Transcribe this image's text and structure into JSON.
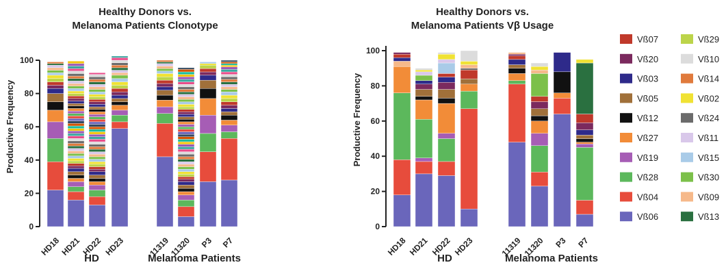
{
  "chart_data": [
    {
      "type": "bar",
      "stacked": true,
      "title_lines": [
        "Healthy Donors vs.",
        "Melanoma Patients Clonotype"
      ],
      "ylabel": "Productive Frequency",
      "ylim": [
        0,
        100
      ],
      "yticks": [
        0,
        20,
        40,
        60,
        80,
        100
      ],
      "categories": [
        "HD18",
        "HD21",
        "HD22",
        "HD23",
        "11319",
        "11320",
        "P3",
        "P7"
      ],
      "groups": [
        {
          "label": "HD",
          "categories": [
            "HD18",
            "HD21",
            "HD22",
            "HD23"
          ]
        },
        {
          "label": "Melanoma Patients",
          "categories": [
            "11319",
            "11320",
            "P3",
            "P7"
          ]
        }
      ],
      "bars": [
        {
          "segments": [
            22,
            17,
            14,
            10,
            7,
            5,
            5,
            3,
            2,
            2,
            2,
            2,
            1.5,
            1.5,
            1.5,
            1.5,
            1,
            1
          ]
        },
        {
          "segments": [
            16,
            5,
            3,
            3,
            2,
            2,
            2,
            2,
            1.5,
            1.5,
            1.5,
            1.5,
            1.5,
            1.5,
            1.5,
            1.5,
            1.5,
            1.5,
            1.5,
            1.5,
            1.5,
            1.5,
            1.5,
            1.5,
            1.5,
            1.5,
            1.5,
            1.5,
            1.5,
            1.5,
            1.5,
            1.5,
            1.5,
            1.5,
            1.5,
            1.5,
            1.5,
            1.5,
            1.5,
            1.5,
            1.5,
            1.5,
            1.5,
            1.5,
            1.5,
            1.5,
            1.5,
            1.5,
            1.5,
            1.5,
            1.5
          ]
        },
        {
          "segments": [
            13,
            5,
            4,
            3,
            2,
            2,
            2,
            2,
            1.5,
            1.5,
            1.5,
            1.5,
            1.5,
            1.5,
            1.5,
            1.5,
            1.5,
            1.5,
            1.5,
            1.5,
            1.5,
            1.5,
            1.5,
            1.5,
            1.5,
            1.5,
            1.5,
            1.5,
            1.5,
            1.5,
            1.5,
            1.5,
            1.5,
            1.5,
            1.5,
            1.5,
            1.5,
            1.5,
            1.5,
            1.5,
            1.5,
            1.5,
            1.5,
            1.5,
            1.5,
            1.5,
            1.5,
            1
          ]
        },
        {
          "segments": [
            59,
            4,
            4,
            3,
            3,
            2,
            2,
            2,
            2,
            2,
            2,
            2,
            2,
            2,
            1.5,
            1.5,
            1.5,
            1.5,
            1.5,
            1.5,
            1.5,
            1
          ]
        },
        {
          "segments": [
            42,
            20,
            6,
            4,
            4,
            3,
            3,
            2,
            2,
            2,
            2,
            2,
            1.5,
            1.5,
            1.5,
            1.5,
            1,
            1
          ]
        },
        {
          "segments": [
            6,
            6,
            4,
            3,
            2,
            2,
            2,
            2,
            1.5,
            1.5,
            1.5,
            1.5,
            1.5,
            1.5,
            1.5,
            1.5,
            1.5,
            1.5,
            1.5,
            1.5,
            1.5,
            1.5,
            1.5,
            1.5,
            1.5,
            1.5,
            1.5,
            1.5,
            1.5,
            1.5,
            1.5,
            1.5,
            1.5,
            1.5,
            1.5,
            1.5,
            1.5,
            1.5,
            1.5,
            1.5,
            1.5,
            1.5,
            1.5,
            1.5,
            1.5,
            1.5,
            1.5,
            1.5,
            1.5,
            1.5,
            1.5,
            1.5,
            1.5,
            1
          ]
        },
        {
          "segments": [
            27,
            18,
            11,
            11,
            10,
            6,
            5,
            3,
            2,
            2,
            2,
            1,
            1
          ]
        },
        {
          "segments": [
            28,
            25,
            4,
            4,
            3,
            3,
            2,
            2,
            2,
            2,
            2,
            2,
            2,
            1.5,
            1.5,
            1.5,
            1.5,
            1.5,
            1.5,
            1.5,
            1.5,
            1.5,
            1.5,
            1,
            1,
            1,
            1
          ]
        }
      ]
    },
    {
      "type": "bar",
      "stacked": true,
      "title_lines": [
        "Healthy Donors vs.",
        "Melanoma Patients Vβ Usage"
      ],
      "ylabel": "Productive Frequency",
      "ylim": [
        0,
        100
      ],
      "yticks": [
        0,
        20,
        40,
        60,
        80,
        100
      ],
      "categories": [
        "HD18",
        "HD21",
        "HD22",
        "HD23",
        "11319",
        "11320",
        "P3",
        "P7"
      ],
      "groups": [
        {
          "label": "HD",
          "categories": [
            "HD18",
            "HD21",
            "HD22",
            "HD23"
          ]
        },
        {
          "label": "Melanoma Patients",
          "categories": [
            "11319",
            "11320",
            "P3",
            "P7"
          ]
        }
      ],
      "legend": [
        {
          "name": "Vß07",
          "color": "#c0392b"
        },
        {
          "name": "Vß29",
          "color": "#bcd44a"
        },
        {
          "name": "Vß20",
          "color": "#7b2a5e"
        },
        {
          "name": "Vß10",
          "color": "#dcdcdc"
        },
        {
          "name": "Vß03",
          "color": "#2e2a8a"
        },
        {
          "name": "Vß14",
          "color": "#e07a3c"
        },
        {
          "name": "Vß05",
          "color": "#a0703a"
        },
        {
          "name": "Vß02",
          "color": "#f0e234"
        },
        {
          "name": "Vß12",
          "color": "#111111"
        },
        {
          "name": "Vß24",
          "color": "#6b6b6b"
        },
        {
          "name": "Vß27",
          "color": "#f28c38"
        },
        {
          "name": "Vß11",
          "color": "#d9c8ea"
        },
        {
          "name": "Vß19",
          "color": "#a65db5"
        },
        {
          "name": "Vß15",
          "color": "#a9cbe8"
        },
        {
          "name": "Vß28",
          "color": "#5cb85c"
        },
        {
          "name": "Vß30",
          "color": "#7cc04a"
        },
        {
          "name": "Vß04",
          "color": "#e74c3c"
        },
        {
          "name": "Vß09",
          "color": "#f6b98a"
        },
        {
          "name": "Vß06",
          "color": "#6a66bb"
        },
        {
          "name": "Vß13",
          "color": "#2a7040"
        }
      ],
      "bars": [
        {
          "segments": [
            {
              "name": "Vß06",
              "value": 18
            },
            {
              "name": "Vß04",
              "value": 20
            },
            {
              "name": "Vß28",
              "value": 38
            },
            {
              "name": "Vß27",
              "value": 15
            },
            {
              "name": "Vß09",
              "value": 3
            },
            {
              "name": "Vß03",
              "value": 2
            },
            {
              "name": "Vß07",
              "value": 2
            },
            {
              "name": "Vß20",
              "value": 1
            }
          ]
        },
        {
          "segments": [
            {
              "name": "Vß06",
              "value": 30
            },
            {
              "name": "Vß04",
              "value": 7
            },
            {
              "name": "Vß19",
              "value": 2
            },
            {
              "name": "Vß28",
              "value": 22
            },
            {
              "name": "Vß27",
              "value": 11
            },
            {
              "name": "Vß12",
              "value": 2
            },
            {
              "name": "Vß05",
              "value": 4
            },
            {
              "name": "Vß20",
              "value": 3
            },
            {
              "name": "Vß03",
              "value": 2
            },
            {
              "name": "Vß30",
              "value": 3
            },
            {
              "name": "Vß11",
              "value": 2
            },
            {
              "name": "Vß02",
              "value": 1
            },
            {
              "name": "Vß10",
              "value": 1
            }
          ]
        },
        {
          "segments": [
            {
              "name": "Vß06",
              "value": 29
            },
            {
              "name": "Vß04",
              "value": 8
            },
            {
              "name": "Vß28",
              "value": 13
            },
            {
              "name": "Vß19",
              "value": 3
            },
            {
              "name": "Vß27",
              "value": 17
            },
            {
              "name": "Vß12",
              "value": 3
            },
            {
              "name": "Vß05",
              "value": 5
            },
            {
              "name": "Vß20",
              "value": 4
            },
            {
              "name": "Vß03",
              "value": 3
            },
            {
              "name": "Vß07",
              "value": 2
            },
            {
              "name": "Vß15",
              "value": 6
            },
            {
              "name": "Vß11",
              "value": 2
            },
            {
              "name": "Vß02",
              "value": 3
            },
            {
              "name": "Vß10",
              "value": 1
            }
          ]
        },
        {
          "segments": [
            {
              "name": "Vß06",
              "value": 10
            },
            {
              "name": "Vß04",
              "value": 57
            },
            {
              "name": "Vß28",
              "value": 10
            },
            {
              "name": "Vß27",
              "value": 4
            },
            {
              "name": "Vß05",
              "value": 3
            },
            {
              "name": "Vß07",
              "value": 5
            },
            {
              "name": "Vß24",
              "value": 1
            },
            {
              "name": "Vß09",
              "value": 2
            },
            {
              "name": "Vß02",
              "value": 2
            },
            {
              "name": "Vß10",
              "value": 6
            }
          ]
        },
        {
          "segments": [
            {
              "name": "Vß06",
              "value": 48
            },
            {
              "name": "Vß04",
              "value": 33
            },
            {
              "name": "Vß28",
              "value": 2
            },
            {
              "name": "Vß27",
              "value": 4
            },
            {
              "name": "Vß12",
              "value": 3
            },
            {
              "name": "Vß05",
              "value": 2
            },
            {
              "name": "Vß03",
              "value": 3
            },
            {
              "name": "Vß07",
              "value": 2
            },
            {
              "name": "Vß20",
              "value": 1
            },
            {
              "name": "Vß09",
              "value": 1
            }
          ]
        },
        {
          "segments": [
            {
              "name": "Vß06",
              "value": 23
            },
            {
              "name": "Vß04",
              "value": 8
            },
            {
              "name": "Vß28",
              "value": 15
            },
            {
              "name": "Vß19",
              "value": 7
            },
            {
              "name": "Vß27",
              "value": 7
            },
            {
              "name": "Vß12",
              "value": 3
            },
            {
              "name": "Vß05",
              "value": 4
            },
            {
              "name": "Vß20",
              "value": 4
            },
            {
              "name": "Vß07",
              "value": 3
            },
            {
              "name": "Vß30",
              "value": 13
            },
            {
              "name": "Vß09",
              "value": 2
            },
            {
              "name": "Vß02",
              "value": 2
            },
            {
              "name": "Vß10",
              "value": 2
            }
          ]
        },
        {
          "segments": [
            {
              "name": "Vß06",
              "value": 64
            },
            {
              "name": "Vß04",
              "value": 9
            },
            {
              "name": "Vß27",
              "value": 3
            },
            {
              "name": "Vß12",
              "value": 12
            },
            {
              "name": "Vß03",
              "value": 11
            }
          ]
        },
        {
          "segments": [
            {
              "name": "Vß06",
              "value": 7
            },
            {
              "name": "Vß04",
              "value": 8
            },
            {
              "name": "Vß28",
              "value": 30
            },
            {
              "name": "Vß19",
              "value": 2
            },
            {
              "name": "Vß27",
              "value": 1
            },
            {
              "name": "Vß12",
              "value": 2
            },
            {
              "name": "Vß05",
              "value": 2
            },
            {
              "name": "Vß03",
              "value": 3
            },
            {
              "name": "Vß20",
              "value": 4
            },
            {
              "name": "Vß07",
              "value": 5
            },
            {
              "name": "Vß13",
              "value": 29
            },
            {
              "name": "Vß02",
              "value": 2
            }
          ]
        }
      ]
    }
  ]
}
